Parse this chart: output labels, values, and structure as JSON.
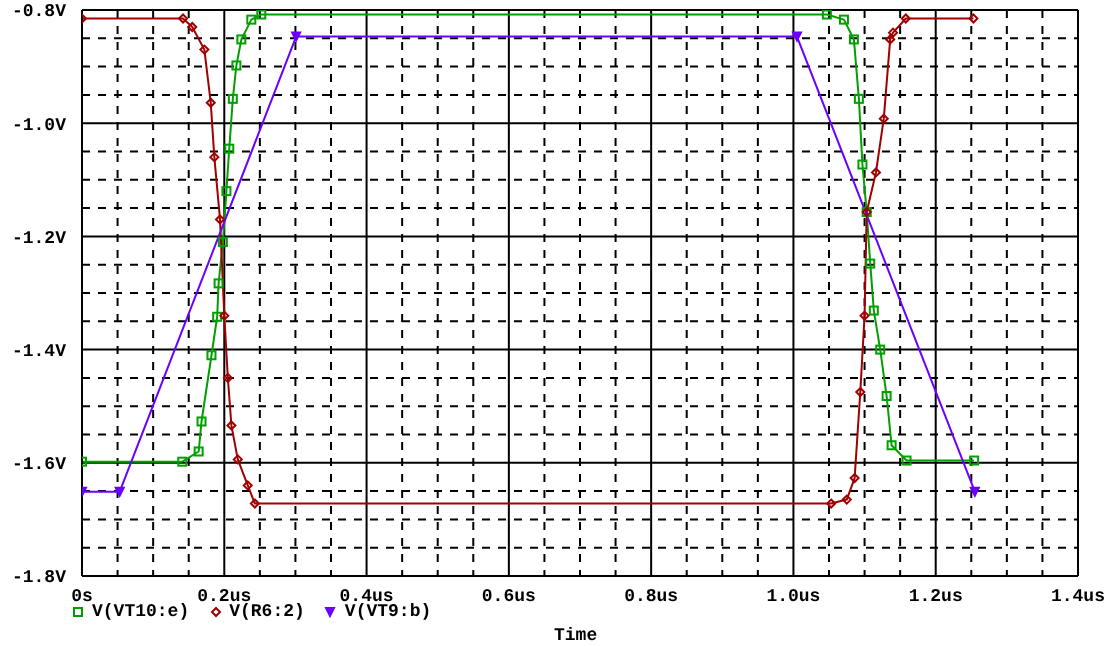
{
  "chart_data": {
    "type": "line",
    "xlabel": "Time",
    "grid": true,
    "legend": "bottom left",
    "line_style": "solid",
    "xlim": [
      0,
      1.4
    ],
    "xticks": [
      {
        "value": 0,
        "label": "0s"
      },
      {
        "value": 0.2,
        "label": "0.2us"
      },
      {
        "value": 0.4,
        "label": "0.4us"
      },
      {
        "value": 0.6,
        "label": "0.6us"
      },
      {
        "value": 0.8,
        "label": "0.8us"
      },
      {
        "value": 1.0,
        "label": "1.0us"
      },
      {
        "value": 1.2,
        "label": "1.2us"
      },
      {
        "value": 1.4,
        "label": "1.4us"
      }
    ],
    "ylim": [
      -1.8,
      -0.8
    ],
    "yticks": [
      {
        "value": -1.8,
        "label": "-1.8V"
      },
      {
        "value": -1.6,
        "label": "-1.6V"
      },
      {
        "value": -1.4,
        "label": "-1.4V"
      },
      {
        "value": -1.2,
        "label": "-1.2V"
      },
      {
        "value": -1.0,
        "label": "-1.0V"
      },
      {
        "value": -0.8,
        "label": "-0.8V"
      }
    ],
    "series": [
      {
        "name": "V(VT10:e)",
        "color": "#00a000",
        "marker": "square",
        "x": [
          0,
          0.141,
          0.164,
          0.168,
          0.182,
          0.19,
          0.192,
          0.198,
          0.203,
          0.207,
          0.212,
          0.217,
          0.224,
          0.238,
          0.252,
          1.047,
          1.071,
          1.085,
          1.092,
          1.097,
          1.103,
          1.108,
          1.113,
          1.122,
          1.131,
          1.138,
          1.159,
          1.254
        ],
        "values": [
          -1.598,
          -1.598,
          -1.58,
          -1.527,
          -1.41,
          -1.342,
          -1.283,
          -1.21,
          -1.12,
          -1.045,
          -0.957,
          -0.898,
          -0.852,
          -0.817,
          -0.808,
          -0.808,
          -0.817,
          -0.852,
          -0.957,
          -1.073,
          -1.157,
          -1.248,
          -1.331,
          -1.4,
          -1.482,
          -1.569,
          -1.596,
          -1.596
        ]
      },
      {
        "name": "V(R6:2)",
        "color": "#a00000",
        "marker": "diamond",
        "x": [
          0,
          0.142,
          0.155,
          0.172,
          0.181,
          0.186,
          0.194,
          0.2,
          0.205,
          0.21,
          0.219,
          0.233,
          0.243,
          1.053,
          1.075,
          1.086,
          1.094,
          1.1,
          1.103,
          1.116,
          1.127,
          1.136,
          1.14,
          1.158,
          1.253
        ],
        "values": [
          -0.815,
          -0.815,
          -0.83,
          -0.87,
          -0.964,
          -1.06,
          -1.17,
          -1.34,
          -1.45,
          -1.534,
          -1.594,
          -1.64,
          -1.672,
          -1.672,
          -1.665,
          -1.627,
          -1.475,
          -1.34,
          -1.157,
          -1.087,
          -0.992,
          -0.852,
          -0.84,
          -0.815,
          -0.815
        ]
      },
      {
        "name": "V(VT9:b)",
        "color": "#6a00ff",
        "marker": "triangle",
        "x": [
          0,
          0.053,
          0.301,
          1.005,
          1.255
        ],
        "values": [
          -1.651,
          -1.651,
          -0.847,
          -0.847,
          -1.651
        ]
      }
    ]
  }
}
